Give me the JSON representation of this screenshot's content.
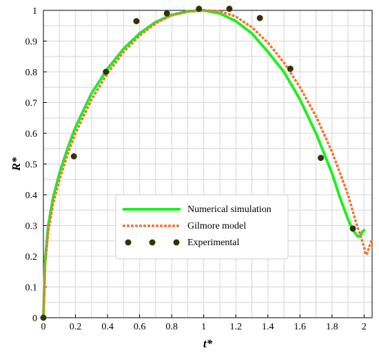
{
  "chart_data": {
    "type": "line",
    "xlabel": "t*",
    "ylabel": "R*",
    "xlim": [
      0,
      2.05
    ],
    "ylim": [
      0,
      1
    ],
    "x_ticks": [
      "0",
      "0.2",
      "0.4",
      "0.6",
      "0.8",
      "1",
      "1.2",
      "1.4",
      "1.6",
      "1.8",
      "2"
    ],
    "y_ticks": [
      "0",
      "0.1",
      "0.2",
      "0.3",
      "0.4",
      "0.5",
      "0.6",
      "0.7",
      "0.8",
      "0.9",
      "1"
    ],
    "grid": true,
    "legend_position": "center-bottom",
    "series": [
      {
        "name": "Numerical simulation",
        "style": "solid",
        "color": "#22ee22",
        "x": [
          0,
          0.01,
          0.03,
          0.06,
          0.1,
          0.15,
          0.2,
          0.3,
          0.4,
          0.5,
          0.6,
          0.7,
          0.8,
          0.9,
          1.0,
          1.1,
          1.2,
          1.3,
          1.4,
          1.5,
          1.6,
          1.7,
          1.8,
          1.85,
          1.9,
          1.93,
          1.96,
          1.975,
          1.99,
          2.0
        ],
        "y": [
          0.0,
          0.18,
          0.3,
          0.39,
          0.47,
          0.55,
          0.62,
          0.73,
          0.81,
          0.875,
          0.925,
          0.962,
          0.985,
          0.997,
          1.0,
          0.99,
          0.965,
          0.925,
          0.865,
          0.8,
          0.71,
          0.6,
          0.47,
          0.39,
          0.32,
          0.285,
          0.265,
          0.265,
          0.28,
          0.285
        ]
      },
      {
        "name": "Gilmore model",
        "style": "dashed",
        "color": "#ee7733",
        "x": [
          0,
          0.01,
          0.03,
          0.06,
          0.1,
          0.15,
          0.2,
          0.3,
          0.4,
          0.5,
          0.6,
          0.7,
          0.8,
          0.9,
          1.0,
          1.1,
          1.2,
          1.3,
          1.4,
          1.5,
          1.6,
          1.7,
          1.8,
          1.85,
          1.9,
          1.95,
          2.0,
          2.01,
          2.02,
          2.035,
          2.05
        ],
        "y": [
          0.0,
          0.17,
          0.28,
          0.37,
          0.45,
          0.53,
          0.6,
          0.71,
          0.795,
          0.865,
          0.918,
          0.958,
          0.984,
          0.996,
          1.0,
          0.997,
          0.98,
          0.945,
          0.895,
          0.83,
          0.75,
          0.655,
          0.54,
          0.47,
          0.4,
          0.31,
          0.23,
          0.205,
          0.21,
          0.235,
          0.255
        ]
      },
      {
        "name": "Experimental",
        "style": "markers",
        "color": "#333300",
        "x": [
          0,
          0.19,
          0.39,
          0.58,
          0.77,
          0.97,
          1.16,
          1.35,
          1.54,
          1.73,
          1.93
        ],
        "y": [
          0.0,
          0.525,
          0.8,
          0.965,
          0.99,
          1.005,
          1.005,
          0.975,
          0.81,
          0.52,
          0.29
        ]
      }
    ]
  }
}
